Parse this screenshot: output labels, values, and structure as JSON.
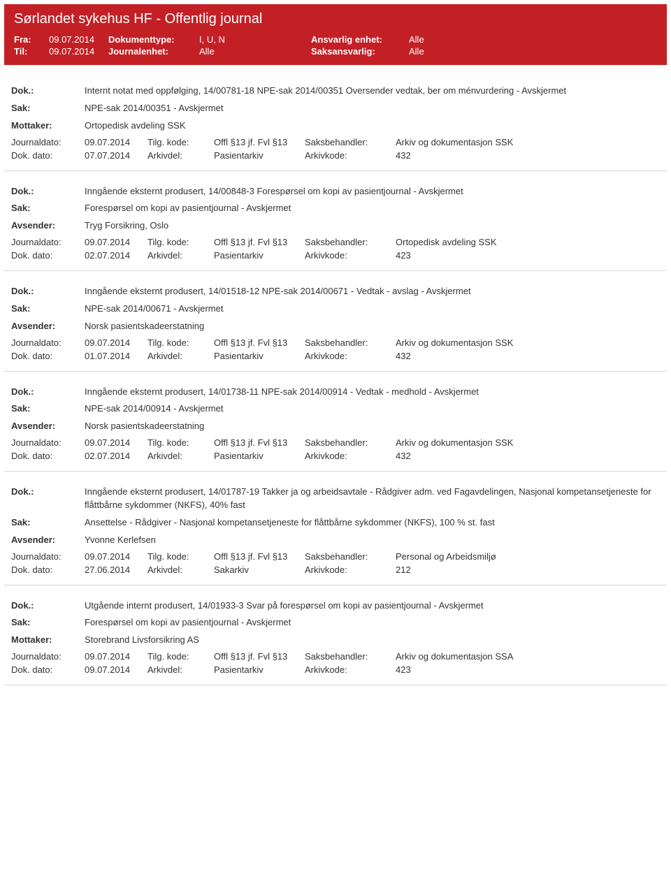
{
  "header": {
    "title": "Sørlandet sykehus HF - Offentlig journal",
    "fra_label": "Fra:",
    "fra": "09.07.2014",
    "til_label": "Til:",
    "til": "09.07.2014",
    "doktype_label": "Dokumenttype:",
    "doktype": "I, U, N",
    "journalenhet_label": "Journalenhet:",
    "journalenhet": "Alle",
    "ansvarlig_label": "Ansvarlig enhet:",
    "ansvarlig": "Alle",
    "saksansvarlig_label": "Saksansvarlig:",
    "saksansvarlig": "Alle"
  },
  "labels": {
    "dok": "Dok.:",
    "sak": "Sak:",
    "mottaker": "Mottaker:",
    "avsender": "Avsender:",
    "journaldato": "Journaldato:",
    "dokdato": "Dok. dato:",
    "tilgkode": "Tilg. kode:",
    "arkivdel": "Arkivdel:",
    "saksbehandler": "Saksbehandler:",
    "arkivkode": "Arkivkode:"
  },
  "entries": [
    {
      "dok": "Internt notat med oppfølging, 14/00781-18 NPE-sak 2014/00351 Oversender vedtak, ber om ménvurdering - Avskjermet",
      "sak": "NPE-sak 2014/00351 - Avskjermet",
      "party_label": "Mottaker:",
      "party": "Ortopedisk avdeling SSK",
      "journaldato": "09.07.2014",
      "tilgkode": "Offl §13 jf. Fvl §13",
      "saksbehandler": "Arkiv og dokumentasjon SSK",
      "dokdato": "07.07.2014",
      "arkivdel": "Pasientarkiv",
      "arkivkode": "432"
    },
    {
      "dok": "Inngående eksternt produsert, 14/00848-3 Forespørsel om kopi av pasientjournal - Avskjermet",
      "sak": "Forespørsel om kopi av pasientjournal - Avskjermet",
      "party_label": "Avsender:",
      "party": "Tryg Forsikring, Oslo",
      "journaldato": "09.07.2014",
      "tilgkode": "Offl §13 jf. Fvl §13",
      "saksbehandler": "Ortopedisk avdeling SSK",
      "dokdato": "02.07.2014",
      "arkivdel": "Pasientarkiv",
      "arkivkode": "423"
    },
    {
      "dok": "Inngående eksternt produsert, 14/01518-12 NPE-sak 2014/00671 - Vedtak - avslag - Avskjermet",
      "sak": "NPE-sak 2014/00671 - Avskjermet",
      "party_label": "Avsender:",
      "party": "Norsk pasientskadeerstatning",
      "journaldato": "09.07.2014",
      "tilgkode": "Offl §13 jf. Fvl §13",
      "saksbehandler": "Arkiv og dokumentasjon SSK",
      "dokdato": "01.07.2014",
      "arkivdel": "Pasientarkiv",
      "arkivkode": "432"
    },
    {
      "dok": "Inngående eksternt produsert, 14/01738-11 NPE-sak 2014/00914 - Vedtak - medhold - Avskjermet",
      "sak": "NPE-sak 2014/00914 - Avskjermet",
      "party_label": "Avsender:",
      "party": "Norsk pasientskadeerstatning",
      "journaldato": "09.07.2014",
      "tilgkode": "Offl §13 jf. Fvl §13",
      "saksbehandler": "Arkiv og dokumentasjon SSK",
      "dokdato": "02.07.2014",
      "arkivdel": "Pasientarkiv",
      "arkivkode": "432"
    },
    {
      "dok": "Inngående eksternt produsert, 14/01787-19 Takker ja og arbeidsavtale - Rådgiver adm. ved Fagavdelingen, Nasjonal kompetansetjeneste for flåttbårne sykdommer (NKFS), 40% fast",
      "sak": "Ansettelse - Rådgiver - Nasjonal kompetansetjeneste for flåttbårne sykdommer (NKFS), 100 % st. fast",
      "party_label": "Avsender:",
      "party": "Yvonne Kerlefsen",
      "journaldato": "09.07.2014",
      "tilgkode": "Offl §13 jf. Fvl §13",
      "saksbehandler": "Personal og Arbeidsmiljø",
      "dokdato": "27.06.2014",
      "arkivdel": "Sakarkiv",
      "arkivkode": "212"
    },
    {
      "dok": "Utgående internt produsert, 14/01933-3 Svar på forespørsel om kopi av pasientjournal - Avskjermet",
      "sak": "Forespørsel om kopi av pasientjournal - Avskjermet",
      "party_label": "Mottaker:",
      "party": "Storebrand Livsforsikring AS",
      "journaldato": "09.07.2014",
      "tilgkode": "Offl §13 jf. Fvl §13",
      "saksbehandler": "Arkiv og dokumentasjon SSA",
      "dokdato": "09.07.2014",
      "arkivdel": "Pasientarkiv",
      "arkivkode": "423"
    }
  ]
}
